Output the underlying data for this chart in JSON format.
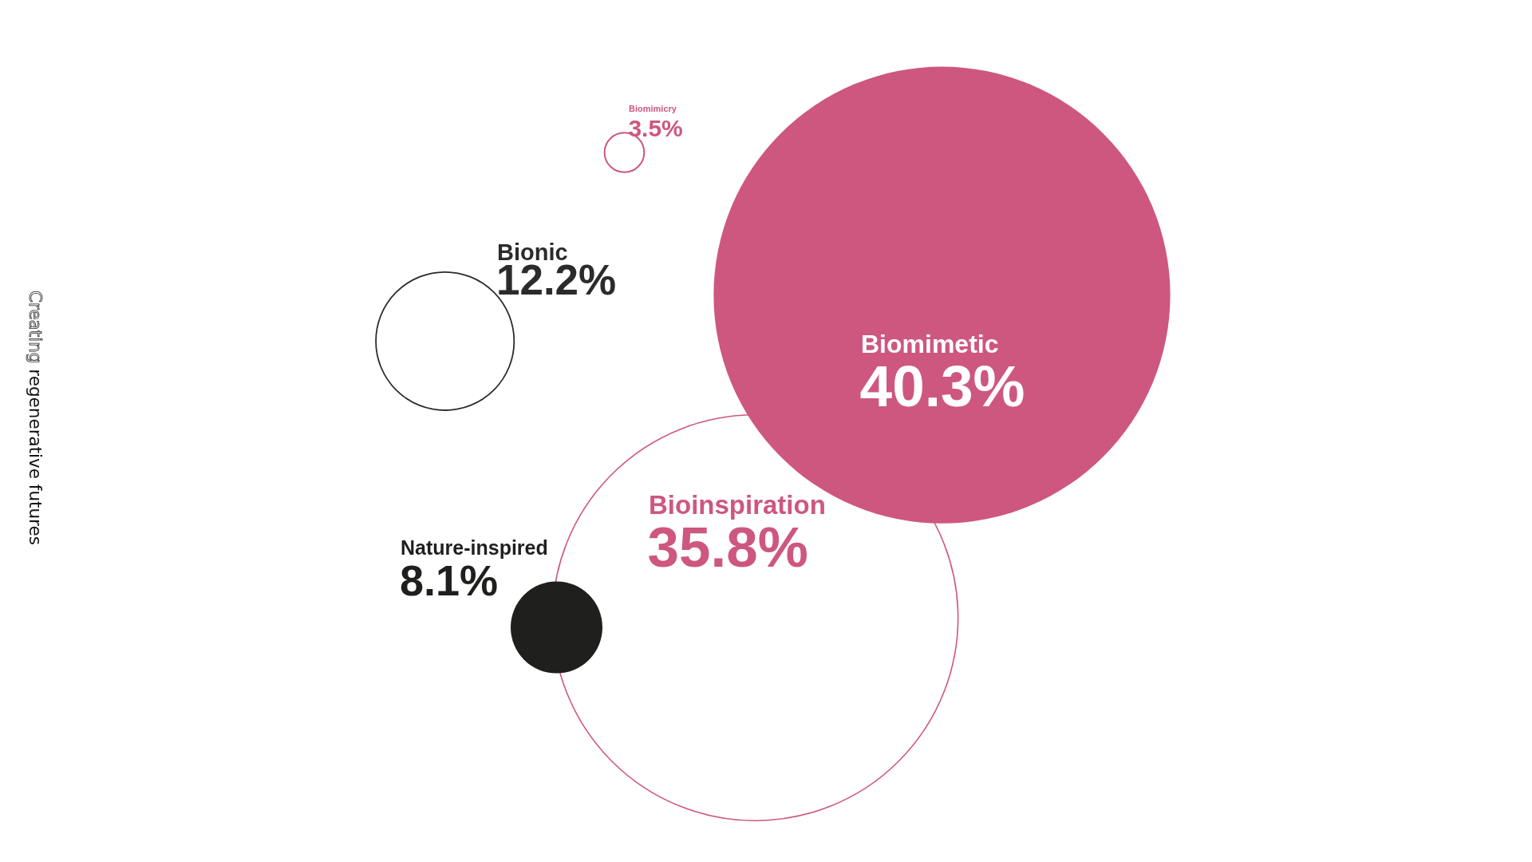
{
  "chart_data": {
    "type": "other",
    "categories": [
      "Biomimetic",
      "Bioinspiration",
      "Bionic",
      "Nature-inspired",
      "Biomimicry"
    ],
    "values": [
      40.3,
      35.8,
      12.2,
      8.1,
      3.5
    ],
    "value_labels": [
      "40.3%",
      "35.8%",
      "12.2%",
      "8.1%",
      "3.5%"
    ],
    "colors": [
      "#ce577f",
      "#ce577f",
      "#2b2b2b",
      "#1f1f1e",
      "#ce577f"
    ],
    "annotations": [
      "Creating regenerative futures"
    ]
  }
}
